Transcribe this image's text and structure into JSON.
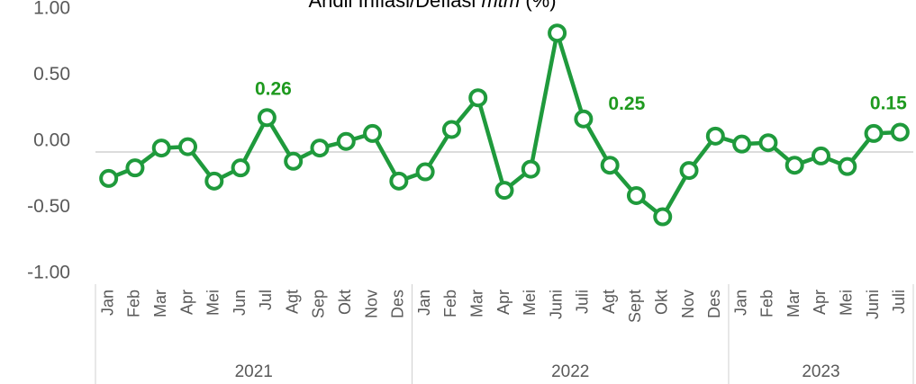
{
  "chart_data": {
    "type": "line",
    "title": [
      "Andil Inflasi/Deflasi ",
      "mtm",
      " (%)"
    ],
    "groups": [
      {
        "label": "2021",
        "categories": [
          "Jan",
          "Feb",
          "Mar",
          "Apr",
          "Mei",
          "Jun",
          "Jul",
          "Agt",
          "Sep",
          "Okt",
          "Nov",
          "Des"
        ]
      },
      {
        "label": "2022",
        "categories": [
          "Jan",
          "Feb",
          "Mar",
          "Apr",
          "Mei",
          "Juni",
          "Juli",
          "Agt",
          "Sept",
          "Okt",
          "Nov",
          "Des"
        ]
      },
      {
        "label": "2023",
        "categories": [
          "Jan",
          "Feb",
          "Mar",
          "Apr",
          "Mei",
          "Juni",
          "Juli"
        ]
      }
    ],
    "series": [
      {
        "color": "#1f9a3c",
        "values": [
          -0.2,
          -0.12,
          0.03,
          0.04,
          -0.22,
          -0.12,
          0.26,
          -0.07,
          0.03,
          0.08,
          0.14,
          -0.22,
          -0.15,
          0.17,
          0.41,
          -0.29,
          -0.13,
          0.9,
          0.25,
          -0.1,
          -0.33,
          -0.49,
          -0.14,
          0.12,
          0.06,
          0.07,
          -0.1,
          -0.03,
          -0.11,
          0.14,
          0.15
        ],
        "value_labels": [
          null,
          null,
          null,
          null,
          null,
          null,
          "0.26",
          null,
          null,
          null,
          null,
          null,
          null,
          null,
          null,
          null,
          null,
          null,
          "0.25",
          null,
          null,
          null,
          null,
          null,
          null,
          null,
          null,
          null,
          null,
          null,
          "0.15"
        ],
        "label_color": "#1f9a1f"
      }
    ],
    "ylim": [
      -1,
      1
    ],
    "yticks": [
      {
        "value": -1,
        "label": "-1.00"
      },
      {
        "value": -0.5,
        "label": "-0.50"
      },
      {
        "value": 0,
        "label": "0.00"
      },
      {
        "value": 0.5,
        "label": "0.50"
      },
      {
        "value": 1,
        "label": "1.00"
      }
    ]
  }
}
